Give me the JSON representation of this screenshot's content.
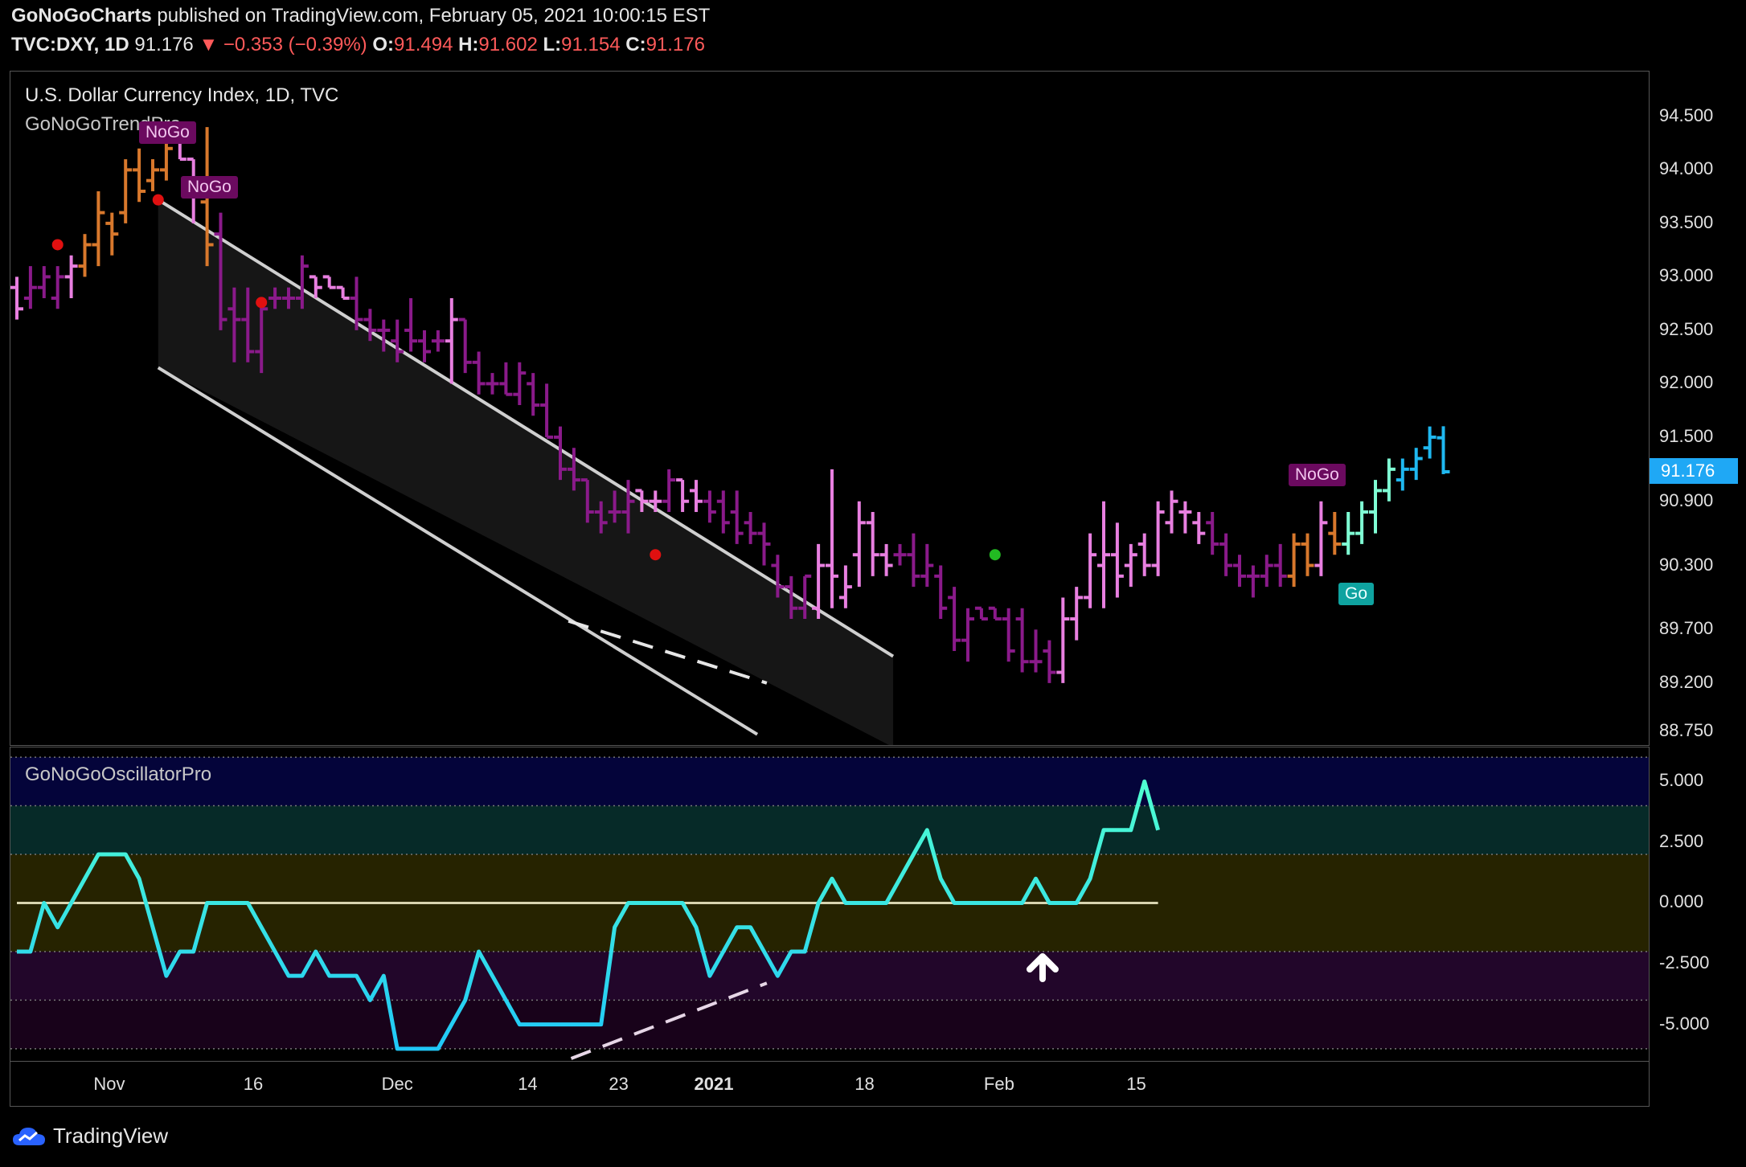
{
  "header": {
    "publisher": "GoNoGoCharts",
    "published_text": "published on TradingView.com, February 05, 2021 10:00:15 EST",
    "symbol": "TVC:DXY, 1D",
    "last": "91.176",
    "change": "▼ −0.353 (−0.39%)",
    "o_label": "O:",
    "o_value": "91.494",
    "h_label": "H:",
    "h_value": "91.602",
    "l_label": "L:",
    "l_value": "91.154",
    "c_label": "C:",
    "c_value": "91.176"
  },
  "price_panel": {
    "title": "U.S. Dollar Currency Index, 1D, TVC",
    "indicator": "GoNoGoTrendPro",
    "last_price_label": "91.176",
    "y_ticks": [
      "94.500",
      "94.000",
      "93.500",
      "93.000",
      "92.500",
      "92.000",
      "91.500",
      "90.900",
      "90.300",
      "89.700",
      "89.200",
      "88.750"
    ],
    "tags": [
      "NoGo",
      "NoGo",
      "NoGo",
      "Go"
    ]
  },
  "osc_panel": {
    "title": "GoNoGoOscillatorPro",
    "y_ticks": [
      "5.000",
      "2.500",
      "0.000",
      "-2.500",
      "-5.000"
    ]
  },
  "x_axis": {
    "ticks": [
      "Nov",
      "16",
      "Dec",
      "14",
      "23",
      "2021",
      "18",
      "Feb",
      "15"
    ]
  },
  "footer": {
    "brand": "TradingView"
  },
  "colors": {
    "nogo_dark": "#8a1a8a",
    "nogo_light": "#e87fe0",
    "nogo_orange": "#d8782c",
    "go_light": "#7fffd4",
    "go_blue": "#1fb8f0",
    "channel": "#cfcfcf",
    "last_price": "#1fa8f5"
  },
  "chart_data": [
    {
      "type": "line",
      "title": "U.S. Dollar Currency Index, 1D, TVC",
      "ylim": [
        88.75,
        94.9
      ],
      "y_ticks": [
        94.5,
        94.0,
        93.5,
        93.0,
        92.5,
        92.0,
        91.5,
        90.9,
        90.3,
        89.7,
        89.2,
        88.75
      ],
      "x_ticks": [
        "Nov",
        "16",
        "Dec",
        "14",
        "23",
        "2021",
        "18",
        "Feb",
        "15"
      ],
      "bars": [
        {
          "o": 92.9,
          "h": 93.0,
          "l": 92.6,
          "c": 92.7,
          "color": "light"
        },
        {
          "o": 92.8,
          "h": 93.1,
          "l": 92.7,
          "c": 92.9,
          "color": "dark"
        },
        {
          "o": 92.9,
          "h": 93.1,
          "l": 92.8,
          "c": 93.0,
          "color": "dark"
        },
        {
          "o": 92.8,
          "h": 93.1,
          "l": 92.7,
          "c": 93.0,
          "color": "dark"
        },
        {
          "o": 93.0,
          "h": 93.2,
          "l": 92.8,
          "c": 93.1,
          "color": "light"
        },
        {
          "o": 93.1,
          "h": 93.4,
          "l": 93.0,
          "c": 93.3,
          "color": "orange"
        },
        {
          "o": 93.3,
          "h": 93.8,
          "l": 93.1,
          "c": 93.6,
          "color": "orange"
        },
        {
          "o": 93.5,
          "h": 93.6,
          "l": 93.2,
          "c": 93.4,
          "color": "orange"
        },
        {
          "o": 93.6,
          "h": 94.1,
          "l": 93.5,
          "c": 94.0,
          "color": "orange"
        },
        {
          "o": 94.0,
          "h": 94.2,
          "l": 93.7,
          "c": 93.8,
          "color": "orange"
        },
        {
          "o": 93.9,
          "h": 94.1,
          "l": 93.8,
          "c": 94.0,
          "color": "orange"
        },
        {
          "o": 94.0,
          "h": 94.4,
          "l": 93.9,
          "c": 94.2,
          "color": "orange"
        },
        {
          "o": 94.3,
          "h": 94.3,
          "l": 94.1,
          "c": 94.1,
          "color": "light"
        },
        {
          "o": 94.1,
          "h": 94.1,
          "l": 93.5,
          "c": 93.8,
          "color": "light"
        },
        {
          "o": 93.7,
          "h": 94.4,
          "l": 93.1,
          "c": 93.3,
          "color": "orange"
        },
        {
          "o": 93.4,
          "h": 93.6,
          "l": 92.5,
          "c": 92.6,
          "color": "dark"
        },
        {
          "o": 92.7,
          "h": 92.9,
          "l": 92.2,
          "c": 92.6,
          "color": "dark"
        },
        {
          "o": 92.6,
          "h": 92.9,
          "l": 92.2,
          "c": 92.3,
          "color": "dark"
        },
        {
          "o": 92.3,
          "h": 92.8,
          "l": 92.1,
          "c": 92.7,
          "color": "dark"
        },
        {
          "o": 92.8,
          "h": 92.9,
          "l": 92.7,
          "c": 92.8,
          "color": "dark"
        },
        {
          "o": 92.8,
          "h": 92.9,
          "l": 92.7,
          "c": 92.8,
          "color": "dark"
        },
        {
          "o": 92.8,
          "h": 93.2,
          "l": 92.7,
          "c": 93.1,
          "color": "dark"
        },
        {
          "o": 93.0,
          "h": 93.0,
          "l": 92.8,
          "c": 92.9,
          "color": "light"
        },
        {
          "o": 93.0,
          "h": 93.0,
          "l": 92.9,
          "c": 92.9,
          "color": "light"
        },
        {
          "o": 92.9,
          "h": 92.9,
          "l": 92.8,
          "c": 92.8,
          "color": "light"
        },
        {
          "o": 92.8,
          "h": 93.0,
          "l": 92.5,
          "c": 92.6,
          "color": "dark"
        },
        {
          "o": 92.6,
          "h": 92.7,
          "l": 92.4,
          "c": 92.5,
          "color": "dark"
        },
        {
          "o": 92.5,
          "h": 92.6,
          "l": 92.3,
          "c": 92.5,
          "color": "dark"
        },
        {
          "o": 92.4,
          "h": 92.6,
          "l": 92.2,
          "c": 92.3,
          "color": "dark"
        },
        {
          "o": 92.5,
          "h": 92.8,
          "l": 92.3,
          "c": 92.4,
          "color": "dark"
        },
        {
          "o": 92.4,
          "h": 92.5,
          "l": 92.2,
          "c": 92.3,
          "color": "dark"
        },
        {
          "o": 92.4,
          "h": 92.5,
          "l": 92.3,
          "c": 92.4,
          "color": "dark"
        },
        {
          "o": 92.4,
          "h": 92.8,
          "l": 92.0,
          "c": 92.6,
          "color": "light"
        },
        {
          "o": 92.6,
          "h": 92.6,
          "l": 92.1,
          "c": 92.2,
          "color": "dark"
        },
        {
          "o": 92.2,
          "h": 92.3,
          "l": 91.9,
          "c": 92.0,
          "color": "dark"
        },
        {
          "o": 92.0,
          "h": 92.1,
          "l": 91.9,
          "c": 92.0,
          "color": "dark"
        },
        {
          "o": 92.0,
          "h": 92.2,
          "l": 91.9,
          "c": 91.9,
          "color": "dark"
        },
        {
          "o": 91.9,
          "h": 92.2,
          "l": 91.8,
          "c": 92.1,
          "color": "dark"
        },
        {
          "o": 92.0,
          "h": 92.1,
          "l": 91.7,
          "c": 91.8,
          "color": "dark"
        },
        {
          "o": 91.8,
          "h": 92.0,
          "l": 91.5,
          "c": 91.5,
          "color": "dark"
        },
        {
          "o": 91.5,
          "h": 91.6,
          "l": 91.1,
          "c": 91.2,
          "color": "dark"
        },
        {
          "o": 91.2,
          "h": 91.4,
          "l": 91.0,
          "c": 91.1,
          "color": "dark"
        },
        {
          "o": 91.1,
          "h": 91.1,
          "l": 90.7,
          "c": 90.8,
          "color": "dark"
        },
        {
          "o": 90.8,
          "h": 90.9,
          "l": 90.6,
          "c": 90.7,
          "color": "dark"
        },
        {
          "o": 90.8,
          "h": 91.0,
          "l": 90.7,
          "c": 90.8,
          "color": "dark"
        },
        {
          "o": 90.8,
          "h": 91.1,
          "l": 90.6,
          "c": 90.9,
          "color": "dark"
        },
        {
          "o": 91.0,
          "h": 91.0,
          "l": 90.8,
          "c": 90.9,
          "color": "light"
        },
        {
          "o": 90.9,
          "h": 91.0,
          "l": 90.8,
          "c": 90.9,
          "color": "light"
        },
        {
          "o": 90.9,
          "h": 91.2,
          "l": 90.8,
          "c": 91.1,
          "color": "dark"
        },
        {
          "o": 91.1,
          "h": 91.1,
          "l": 90.8,
          "c": 90.9,
          "color": "light"
        },
        {
          "o": 91.0,
          "h": 91.1,
          "l": 90.8,
          "c": 90.9,
          "color": "light"
        },
        {
          "o": 90.9,
          "h": 91.0,
          "l": 90.7,
          "c": 90.8,
          "color": "dark"
        },
        {
          "o": 90.9,
          "h": 91.0,
          "l": 90.6,
          "c": 90.7,
          "color": "dark"
        },
        {
          "o": 90.8,
          "h": 91.0,
          "l": 90.5,
          "c": 90.6,
          "color": "dark"
        },
        {
          "o": 90.7,
          "h": 90.8,
          "l": 90.5,
          "c": 90.6,
          "color": "dark"
        },
        {
          "o": 90.6,
          "h": 90.7,
          "l": 90.3,
          "c": 90.5,
          "color": "dark"
        },
        {
          "o": 90.3,
          "h": 90.4,
          "l": 90.0,
          "c": 90.1,
          "color": "dark"
        },
        {
          "o": 90.1,
          "h": 90.2,
          "l": 89.8,
          "c": 89.9,
          "color": "dark"
        },
        {
          "o": 89.9,
          "h": 90.2,
          "l": 89.8,
          "c": 90.2,
          "color": "dark"
        },
        {
          "o": 89.9,
          "h": 90.5,
          "l": 89.8,
          "c": 90.3,
          "color": "light"
        },
        {
          "o": 90.3,
          "h": 91.2,
          "l": 89.9,
          "c": 90.2,
          "color": "light"
        },
        {
          "o": 90.0,
          "h": 90.3,
          "l": 89.9,
          "c": 90.1,
          "color": "light"
        },
        {
          "o": 90.4,
          "h": 90.9,
          "l": 90.1,
          "c": 90.7,
          "color": "light"
        },
        {
          "o": 90.7,
          "h": 90.8,
          "l": 90.2,
          "c": 90.4,
          "color": "light"
        },
        {
          "o": 90.4,
          "h": 90.5,
          "l": 90.2,
          "c": 90.3,
          "color": "light"
        },
        {
          "o": 90.4,
          "h": 90.5,
          "l": 90.3,
          "c": 90.4,
          "color": "dark"
        },
        {
          "o": 90.4,
          "h": 90.6,
          "l": 90.1,
          "c": 90.2,
          "color": "dark"
        },
        {
          "o": 90.2,
          "h": 90.5,
          "l": 90.1,
          "c": 90.3,
          "color": "dark"
        },
        {
          "o": 90.2,
          "h": 90.3,
          "l": 89.8,
          "c": 89.9,
          "color": "dark"
        },
        {
          "o": 90.0,
          "h": 90.1,
          "l": 89.5,
          "c": 89.6,
          "color": "dark"
        },
        {
          "o": 89.6,
          "h": 89.9,
          "l": 89.4,
          "c": 89.8,
          "color": "dark"
        },
        {
          "o": 89.9,
          "h": 89.9,
          "l": 89.8,
          "c": 89.8,
          "color": "dark"
        },
        {
          "o": 89.9,
          "h": 89.9,
          "l": 89.8,
          "c": 89.8,
          "color": "dark"
        },
        {
          "o": 89.8,
          "h": 89.9,
          "l": 89.4,
          "c": 89.5,
          "color": "dark"
        },
        {
          "o": 89.8,
          "h": 89.9,
          "l": 89.3,
          "c": 89.4,
          "color": "dark"
        },
        {
          "o": 89.4,
          "h": 89.7,
          "l": 89.3,
          "c": 89.4,
          "color": "dark"
        },
        {
          "o": 89.5,
          "h": 89.6,
          "l": 89.2,
          "c": 89.3,
          "color": "dark"
        },
        {
          "o": 89.3,
          "h": 90.0,
          "l": 89.2,
          "c": 89.8,
          "color": "light"
        },
        {
          "o": 89.8,
          "h": 90.1,
          "l": 89.6,
          "c": 90.0,
          "color": "light"
        },
        {
          "o": 90.0,
          "h": 90.6,
          "l": 89.9,
          "c": 90.4,
          "color": "light"
        },
        {
          "o": 90.3,
          "h": 90.9,
          "l": 89.9,
          "c": 90.4,
          "color": "light"
        },
        {
          "o": 90.4,
          "h": 90.7,
          "l": 90.0,
          "c": 90.2,
          "color": "light"
        },
        {
          "o": 90.3,
          "h": 90.5,
          "l": 90.1,
          "c": 90.4,
          "color": "light"
        },
        {
          "o": 90.5,
          "h": 90.6,
          "l": 90.2,
          "c": 90.3,
          "color": "light"
        },
        {
          "o": 90.3,
          "h": 90.9,
          "l": 90.2,
          "c": 90.8,
          "color": "light"
        },
        {
          "o": 90.7,
          "h": 91.0,
          "l": 90.6,
          "c": 90.9,
          "color": "light"
        },
        {
          "o": 90.8,
          "h": 90.9,
          "l": 90.6,
          "c": 90.8,
          "color": "light"
        },
        {
          "o": 90.7,
          "h": 90.8,
          "l": 90.5,
          "c": 90.6,
          "color": "light"
        },
        {
          "o": 90.7,
          "h": 90.8,
          "l": 90.4,
          "c": 90.5,
          "color": "dark"
        },
        {
          "o": 90.5,
          "h": 90.6,
          "l": 90.2,
          "c": 90.3,
          "color": "dark"
        },
        {
          "o": 90.3,
          "h": 90.4,
          "l": 90.1,
          "c": 90.2,
          "color": "dark"
        },
        {
          "o": 90.2,
          "h": 90.3,
          "l": 90.0,
          "c": 90.2,
          "color": "dark"
        },
        {
          "o": 90.2,
          "h": 90.4,
          "l": 90.1,
          "c": 90.3,
          "color": "dark"
        },
        {
          "o": 90.3,
          "h": 90.5,
          "l": 90.1,
          "c": 90.2,
          "color": "dark"
        },
        {
          "o": 90.2,
          "h": 90.6,
          "l": 90.1,
          "c": 90.5,
          "color": "orange"
        },
        {
          "o": 90.5,
          "h": 90.6,
          "l": 90.2,
          "c": 90.3,
          "color": "orange"
        },
        {
          "o": 90.3,
          "h": 90.9,
          "l": 90.2,
          "c": 90.7,
          "color": "light"
        },
        {
          "o": 90.6,
          "h": 90.8,
          "l": 90.4,
          "c": 90.5,
          "color": "orange"
        },
        {
          "o": 90.5,
          "h": 90.8,
          "l": 90.4,
          "c": 90.6,
          "color": "go_light"
        },
        {
          "o": 90.6,
          "h": 90.9,
          "l": 90.5,
          "c": 90.8,
          "color": "go_light"
        },
        {
          "o": 90.8,
          "h": 91.1,
          "l": 90.6,
          "c": 91.0,
          "color": "go_light"
        },
        {
          "o": 91.0,
          "h": 91.3,
          "l": 90.9,
          "c": 91.2,
          "color": "go_light"
        },
        {
          "o": 91.1,
          "h": 91.3,
          "l": 91.0,
          "c": 91.2,
          "color": "go_blue"
        },
        {
          "o": 91.2,
          "h": 91.4,
          "l": 91.1,
          "c": 91.3,
          "color": "go_blue"
        },
        {
          "o": 91.4,
          "h": 91.6,
          "l": 91.3,
          "c": 91.5,
          "color": "go_blue"
        },
        {
          "o": 91.494,
          "h": 91.602,
          "l": 91.154,
          "c": 91.176,
          "color": "go_blue"
        }
      ]
    },
    {
      "type": "line",
      "title": "GoNoGoOscillatorPro",
      "ylim": [
        -6,
        6
      ],
      "y_ticks": [
        5.0,
        2.5,
        0.0,
        -2.5,
        -5.0
      ],
      "values": [
        -2,
        -2,
        0,
        -1,
        0,
        1,
        2,
        2,
        2,
        1,
        -1,
        -3,
        -2,
        -2,
        0,
        0,
        0,
        0,
        -1,
        -2,
        -3,
        -3,
        -2,
        -3,
        -3,
        -3,
        -4,
        -3,
        -6,
        -6,
        -6,
        -6,
        -5,
        -4,
        -2,
        -3,
        -4,
        -5,
        -5,
        -5,
        -5,
        -5,
        -5,
        -5,
        -1,
        0,
        0,
        0,
        0,
        0,
        -1,
        -3,
        -2,
        -1,
        -1,
        -2,
        -3,
        -2,
        -2,
        0,
        1,
        0,
        0,
        0,
        0,
        1,
        2,
        3,
        1,
        0,
        0,
        0,
        0,
        0,
        0,
        1,
        0,
        0,
        0,
        1,
        3,
        3,
        3,
        5,
        3
      ],
      "zero_line": 0
    }
  ]
}
